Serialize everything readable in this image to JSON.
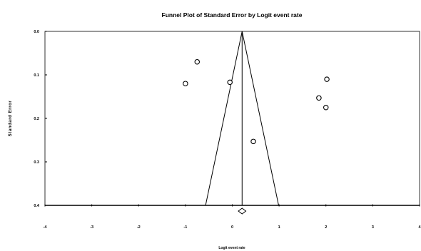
{
  "chart_data": {
    "type": "scatter",
    "title": "Funnel Plot of Standard Error by Logit event rate",
    "xlabel": "Logit event rate",
    "ylabel": "Standard Error",
    "xlim": [
      -4,
      4
    ],
    "ylim": [
      0.0,
      0.4
    ],
    "y_reversed": true,
    "x_ticks": [
      "-4",
      "-3",
      "-2",
      "-1",
      "0",
      "1",
      "2",
      "3",
      "4"
    ],
    "y_ticks": [
      "0.0",
      "0.1",
      "0.2",
      "0.3",
      "0.4"
    ],
    "grid": false,
    "points": [
      {
        "x": -0.75,
        "y": 0.07
      },
      {
        "x": -1.0,
        "y": 0.12
      },
      {
        "x": -0.05,
        "y": 0.117
      },
      {
        "x": 0.45,
        "y": 0.253
      },
      {
        "x": 2.02,
        "y": 0.11
      },
      {
        "x": 1.85,
        "y": 0.153
      },
      {
        "x": 2.0,
        "y": 0.175
      }
    ],
    "funnel": {
      "center": 0.21,
      "apex_se": 0.0,
      "base_se": 0.4,
      "lower_limit": -0.57,
      "upper_limit": 0.99
    },
    "summary_diamond": {
      "x": 0.21,
      "low": 0.13,
      "high": 0.29
    }
  }
}
